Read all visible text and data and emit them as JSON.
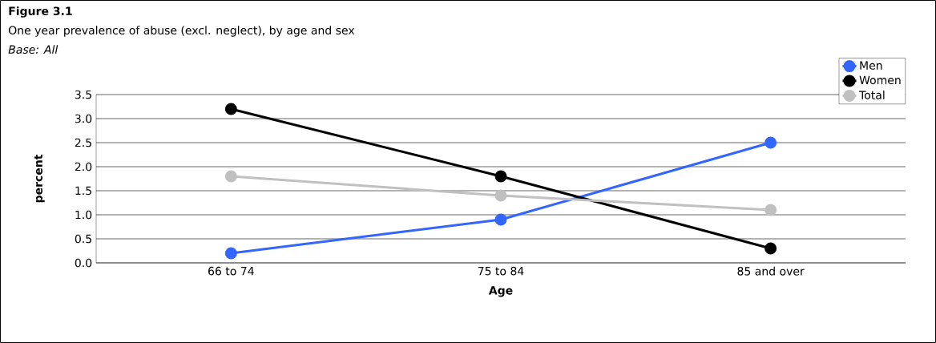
{
  "chart_data": {
    "type": "line",
    "title": "Figure 3.1",
    "subtitle": "One year prevalence of abuse (excl. neglect), by age and sex",
    "annotations": [
      "Base: All"
    ],
    "xlabel": "Age",
    "ylabel": "percent",
    "categories": [
      "66 to 74",
      "75 to 84",
      "85 and over"
    ],
    "series": [
      {
        "name": "Men",
        "color": "#3366ff",
        "values": [
          0.2,
          0.9,
          2.5
        ]
      },
      {
        "name": "Women",
        "color": "#000000",
        "values": [
          3.2,
          1.8,
          0.3
        ]
      },
      {
        "name": "Total",
        "color": "#c0c0c0",
        "values": [
          1.8,
          1.4,
          1.1
        ]
      }
    ],
    "ylim": [
      0,
      3.5
    ],
    "yticks": [
      {
        "value": 0,
        "label": "0.0"
      },
      {
        "value": 0.5,
        "label": "0.5"
      },
      {
        "value": 1,
        "label": "1.0"
      },
      {
        "value": 1.5,
        "label": "1.5"
      },
      {
        "value": 2,
        "label": "2.0"
      },
      {
        "value": 2.5,
        "label": "2.5"
      },
      {
        "value": 3,
        "label": "3.0"
      },
      {
        "value": 3.5,
        "label": "3.5"
      }
    ],
    "grid": "y",
    "legend": "top right",
    "marker": "circle",
    "line_style": "solid"
  }
}
